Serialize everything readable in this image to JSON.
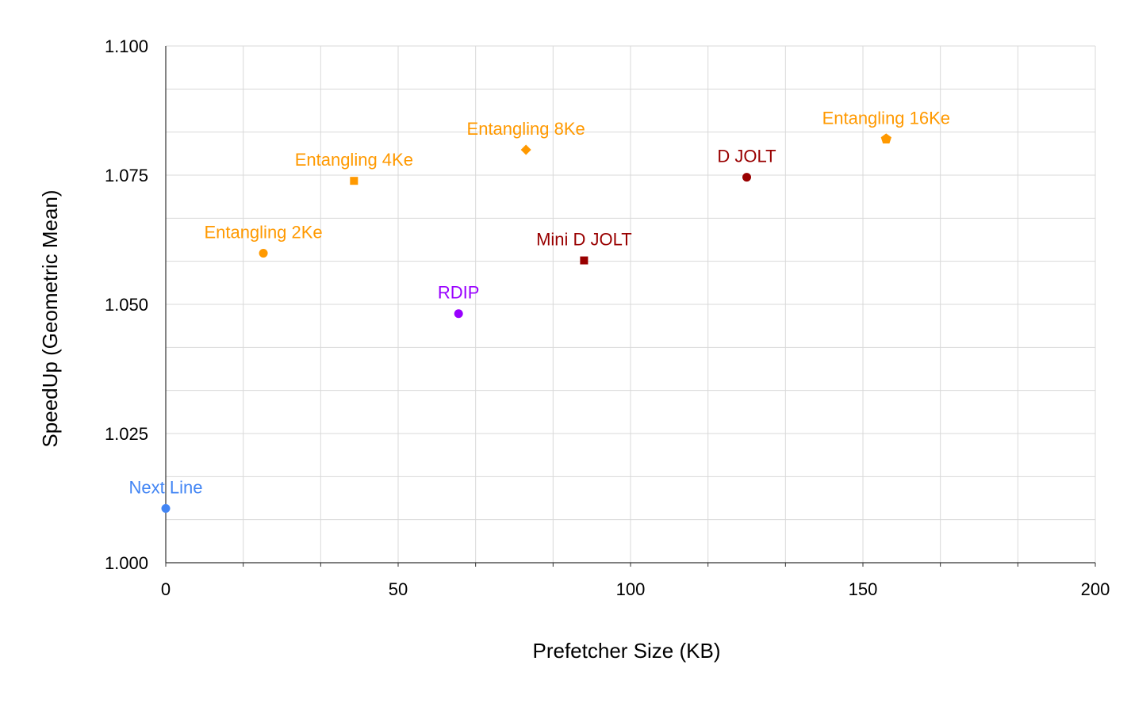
{
  "chart_data": {
    "type": "scatter",
    "xlabel": "Prefetcher Size (KB)",
    "ylabel": "SpeedUp (Geometric Mean)",
    "xlim": [
      0,
      200
    ],
    "ylim": [
      1.0,
      1.1
    ],
    "x_ticks": [
      "0",
      "50",
      "100",
      "150",
      "200"
    ],
    "y_ticks": [
      "1.000",
      "1.025",
      "1.050",
      "1.075",
      "1.100"
    ],
    "grid": true,
    "legend": "none",
    "points": [
      {
        "label": "Next Line",
        "x": 0,
        "y": 1.0105,
        "color": "#4285f4",
        "marker": "circle"
      },
      {
        "label": "Entangling 2Ke",
        "x": 21,
        "y": 1.0599,
        "color": "#ff9900",
        "marker": "circle"
      },
      {
        "label": "Entangling 4Ke",
        "x": 40.5,
        "y": 1.0739,
        "color": "#ff9900",
        "marker": "square"
      },
      {
        "label": "RDIP",
        "x": 63,
        "y": 1.0482,
        "color": "#9900ff",
        "marker": "circle"
      },
      {
        "label": "Entangling 8Ke",
        "x": 77.5,
        "y": 1.0799,
        "color": "#ff9900",
        "marker": "diamond"
      },
      {
        "label": "Mini D JOLT",
        "x": 90,
        "y": 1.0585,
        "color": "#990000",
        "marker": "square"
      },
      {
        "label": "D JOLT",
        "x": 125,
        "y": 1.0746,
        "color": "#990000",
        "marker": "circle"
      },
      {
        "label": "Entangling 16Ke",
        "x": 155,
        "y": 1.082,
        "color": "#ff9900",
        "marker": "pentagon"
      }
    ]
  }
}
